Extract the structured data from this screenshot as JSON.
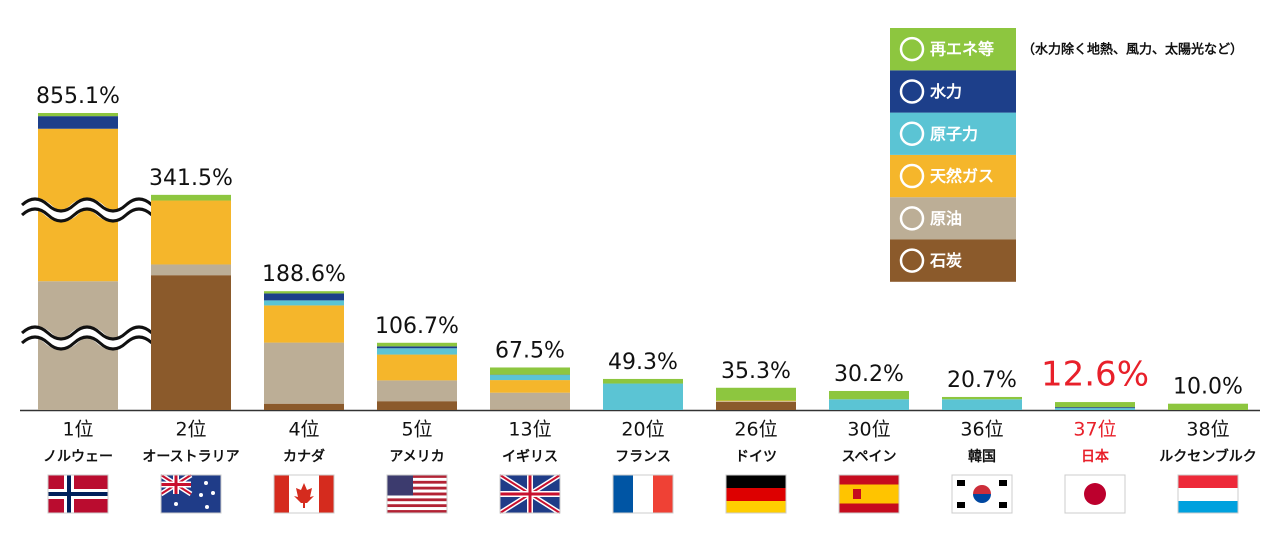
{
  "chart_data": {
    "type": "stacked-bar",
    "categories": [
      "ノルウェー",
      "オーストラリア",
      "カナダ",
      "アメリカ",
      "イギリス",
      "フランス",
      "ドイツ",
      "スペイン",
      "韓国",
      "日本",
      "ルクセンブルク"
    ],
    "ranks": [
      "1位",
      "2位",
      "4位",
      "5位",
      "13位",
      "20位",
      "26位",
      "30位",
      "36位",
      "37位",
      "38位"
    ],
    "totals": [
      855.1,
      341.5,
      188.6,
      106.7,
      67.5,
      49.3,
      35.3,
      30.2,
      20.7,
      12.6,
      10.0
    ],
    "total_labels": [
      "855.1%",
      "341.5%",
      "188.6%",
      "106.7%",
      "67.5%",
      "49.3%",
      "35.3%",
      "30.2%",
      "20.7%",
      "12.6%",
      "10.0%"
    ],
    "series": [
      {
        "name": "石炭",
        "color": "#8b5a2b",
        "values": [
          0,
          214,
          10,
          14,
          0.5,
          0,
          13,
          0,
          0,
          0,
          0
        ]
      },
      {
        "name": "原油",
        "color": "#bcae96",
        "values": [
          380.1,
          17,
          97,
          33,
          27,
          0,
          1,
          0,
          0,
          0,
          0
        ]
      },
      {
        "name": "天然ガス",
        "color": "#f5b62b",
        "values": [
          450,
          101.5,
          59,
          41,
          20,
          0,
          1,
          0,
          0,
          0,
          0
        ]
      },
      {
        "name": "原子力",
        "color": "#5bc4d4",
        "values": [
          0,
          0,
          8,
          10,
          8,
          42,
          0,
          17,
          17,
          3,
          0
        ]
      },
      {
        "name": "水力",
        "color": "#1d3f8a",
        "values": [
          20,
          0,
          11,
          3,
          0.5,
          0,
          0,
          0,
          0,
          1.5,
          0
        ]
      },
      {
        "name": "再エネ等",
        "color": "#8dc63f",
        "values": [
          5,
          9,
          3.6,
          5.7,
          11.5,
          7.3,
          20.3,
          13.2,
          3.7,
          8.1,
          10
        ]
      }
    ],
    "legend_note": "（水力除く地熱、風力、太陽光など）",
    "highlight": 9,
    "highlight_color": "#e8202a"
  }
}
